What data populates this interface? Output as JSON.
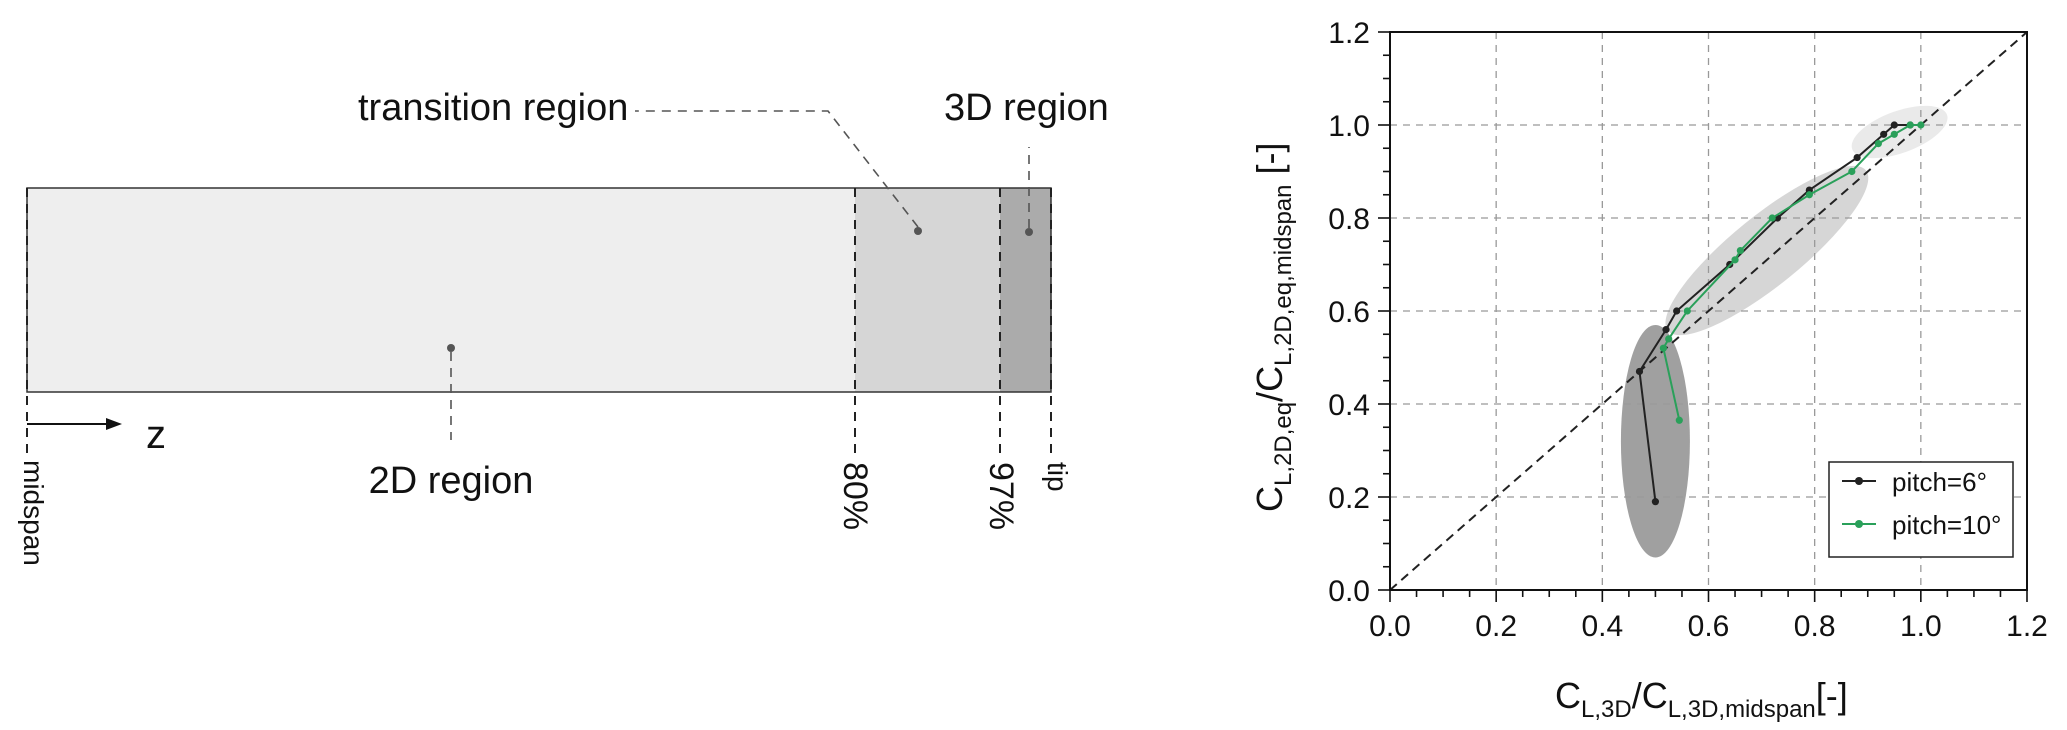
{
  "diagram": {
    "labels": {
      "transition": "transition region",
      "region3d": "3D region",
      "region2d": "2D region",
      "z": "z",
      "midspan": "midspan",
      "p80": "80%",
      "p97": "97%",
      "tip": "tip"
    },
    "colors": {
      "region2d_fill": "#eeeeee",
      "transition_fill": "#d6d6d6",
      "region3d_fill": "#ababab",
      "dot": "#555555"
    }
  },
  "chart_data": {
    "type": "line",
    "xlabel_main": "C",
    "xlabel_sub1": "L,3D",
    "xlabel_slash": "/C",
    "xlabel_sub2": "L,3D,midspan",
    "xlabel_tail": "[-]",
    "ylabel_main": "C",
    "ylabel_sub1": "L,2D,eq",
    "ylabel_slash": "/C",
    "ylabel_sub2": "L,2D,eq,midspan",
    "ylabel_tail": " [-]",
    "xlim": [
      0,
      1.2
    ],
    "ylim": [
      0,
      1.2
    ],
    "xticks": [
      "0.0",
      "0.2",
      "0.4",
      "0.6",
      "0.8",
      "1.0",
      "1.2"
    ],
    "yticks": [
      "0.0",
      "0.2",
      "0.4",
      "0.6",
      "0.8",
      "1.0",
      "1.2"
    ],
    "grid": true,
    "legend_position": "lower-right",
    "reference_line": [
      [
        0,
        0
      ],
      [
        1.2,
        1.2
      ]
    ],
    "series": [
      {
        "name": "pitch=6°",
        "color": "#222222",
        "x": [
          0.5,
          0.47,
          0.52,
          0.54,
          0.64,
          0.73,
          0.79,
          0.88,
          0.93,
          0.95,
          0.98
        ],
        "y": [
          0.19,
          0.47,
          0.56,
          0.6,
          0.7,
          0.8,
          0.86,
          0.93,
          0.98,
          1.0,
          1.0
        ]
      },
      {
        "name": "pitch=10°",
        "color": "#2aa05a",
        "x": [
          0.545,
          0.515,
          0.525,
          0.56,
          0.65,
          0.66,
          0.72,
          0.79,
          0.87,
          0.92,
          0.95,
          0.98,
          1.0
        ],
        "y": [
          0.365,
          0.52,
          0.54,
          0.6,
          0.71,
          0.73,
          0.8,
          0.85,
          0.9,
          0.96,
          0.98,
          1.0,
          1.0
        ]
      }
    ],
    "highlight_ellipses": [
      {
        "name": "2D region cluster",
        "color": "#8f8f8f",
        "cx": 0.5,
        "cy": 0.32,
        "rx": 0.065,
        "ry": 0.25,
        "angle": 0
      },
      {
        "name": "transition region cluster",
        "color": "#cfcfcf",
        "cx": 0.71,
        "cy": 0.73,
        "rx": 0.24,
        "ry": 0.075,
        "angle": 39
      },
      {
        "name": "3D region cluster",
        "color": "#e6e6e6",
        "cx": 0.96,
        "cy": 0.985,
        "rx": 0.095,
        "ry": 0.045,
        "angle": 20
      }
    ]
  }
}
